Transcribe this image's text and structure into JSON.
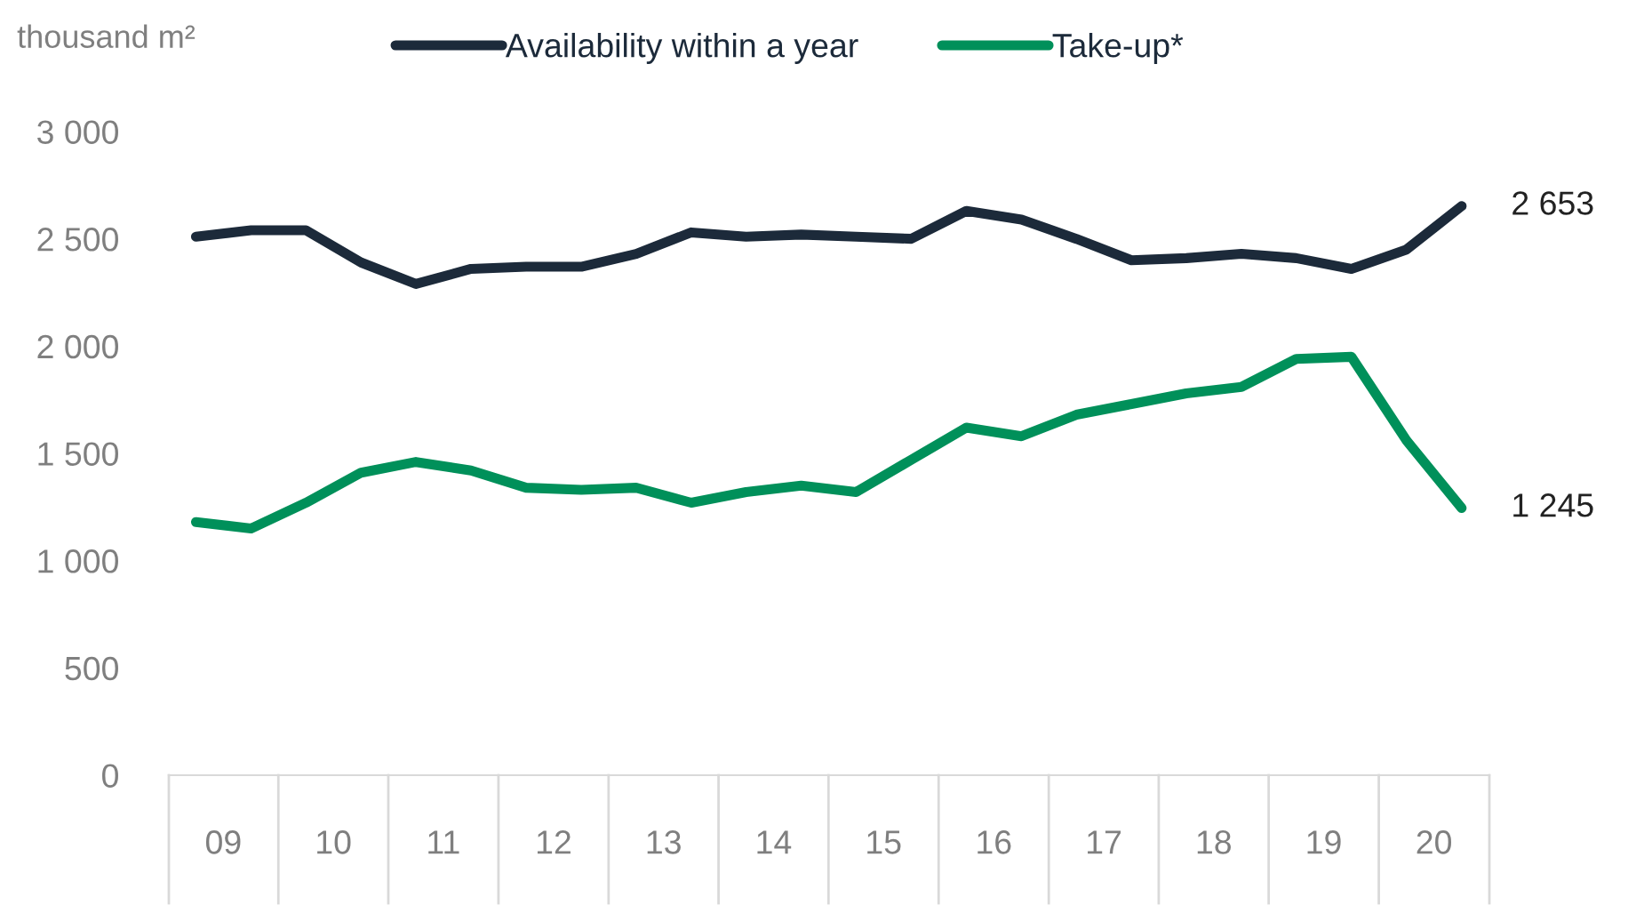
{
  "chart_data": {
    "type": "line",
    "ylabel": "thousand m²",
    "x": [
      "2009-04",
      "2009-10",
      "2010-04",
      "2010-10",
      "2011-04",
      "2011-10",
      "2012-04",
      "2012-10",
      "2013-04",
      "2013-10",
      "2014-04",
      "2014-10",
      "2015-04",
      "2015-10",
      "2016-04",
      "2016-10",
      "2017-04",
      "2017-10",
      "2018-04",
      "2018-10",
      "2019-04",
      "2019-10",
      "2020-04",
      "2020-10"
    ],
    "series": [
      {
        "name": "Availability within a year",
        "color": "#1c2a3a",
        "values": [
          2510,
          2540,
          2540,
          2390,
          2290,
          2360,
          2370,
          2370,
          2430,
          2530,
          2510,
          2520,
          2510,
          2500,
          2630,
          2590,
          2500,
          2400,
          2410,
          2430,
          2410,
          2360,
          2450,
          2653
        ],
        "value_labels": [
          null,
          null,
          null,
          null,
          null,
          null,
          null,
          null,
          null,
          null,
          null,
          null,
          null,
          null,
          null,
          null,
          null,
          null,
          null,
          null,
          null,
          null,
          null,
          "2 653"
        ]
      },
      {
        "name": "Take-up*",
        "color": "#00905a",
        "values": [
          1180,
          1150,
          1270,
          1410,
          1460,
          1420,
          1340,
          1330,
          1340,
          1270,
          1320,
          1350,
          1320,
          1470,
          1620,
          1580,
          1680,
          1730,
          1780,
          1810,
          1940,
          1950,
          1560,
          1245
        ],
        "value_labels": [
          null,
          null,
          null,
          null,
          null,
          null,
          null,
          null,
          null,
          null,
          null,
          null,
          null,
          null,
          null,
          null,
          null,
          null,
          null,
          null,
          null,
          null,
          null,
          "1 245"
        ]
      }
    ],
    "xlim": [
      "2009",
      "2021"
    ],
    "xticks": [
      {
        "value": "2009-07",
        "label": "09"
      },
      {
        "value": "2010-07",
        "label": "10"
      },
      {
        "value": "2011-07",
        "label": "11"
      },
      {
        "value": "2012-07",
        "label": "12"
      },
      {
        "value": "2013-07",
        "label": "13"
      },
      {
        "value": "2014-07",
        "label": "14"
      },
      {
        "value": "2015-07",
        "label": "15"
      },
      {
        "value": "2016-07",
        "label": "16"
      },
      {
        "value": "2017-07",
        "label": "17"
      },
      {
        "value": "2018-07",
        "label": "18"
      },
      {
        "value": "2019-07",
        "label": "19"
      },
      {
        "value": "2020-07",
        "label": "20"
      }
    ],
    "ylim": [
      0,
      3000
    ],
    "yticks": [
      0,
      500,
      {
        "value": 1000,
        "label": "1 000"
      },
      {
        "value": 1500,
        "label": "1 500"
      },
      {
        "value": 2000,
        "label": "2 000"
      },
      {
        "value": 2500,
        "label": "2 500"
      },
      {
        "value": 3000,
        "label": "3 000"
      }
    ],
    "grid": false,
    "legend": "top",
    "line_style": "solid",
    "marker": "none"
  }
}
